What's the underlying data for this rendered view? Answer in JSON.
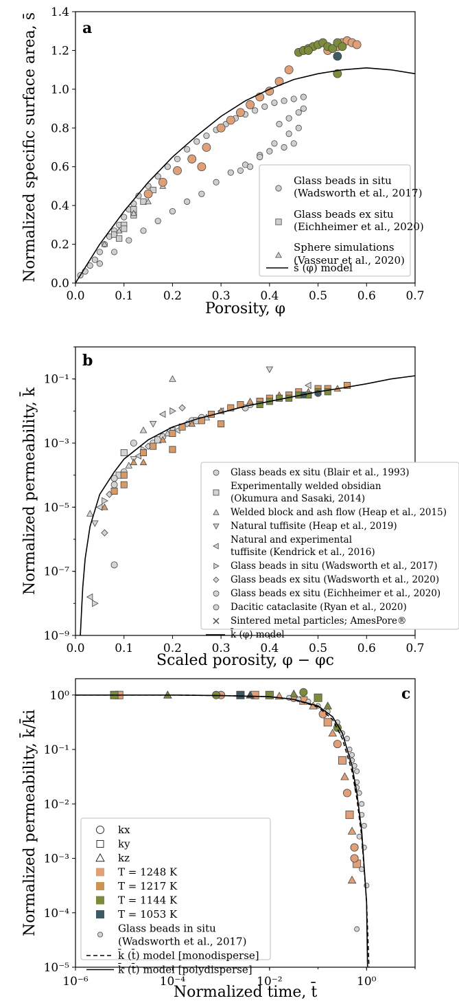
{
  "chart_data": [
    {
      "panel": "a",
      "type": "scatter",
      "xlabel": "Porosity, φ",
      "ylabel": "Normalized specific surface area, s̄",
      "xlim": [
        0,
        0.7
      ],
      "ylim": [
        0,
        1.4
      ],
      "xticks": [
        "0.0",
        "0.1",
        "0.2",
        "0.3",
        "0.4",
        "0.5",
        "0.6",
        "0.7"
      ],
      "yticks": [
        "0.0",
        "0.2",
        "0.4",
        "0.6",
        "0.8",
        "1.0",
        "1.2",
        "1.4"
      ],
      "legend_position": "lower-right",
      "legend": [
        {
          "label": "Glass beads in situ",
          "label2": "(Wadsworth et al., 2017)",
          "marker": "circle"
        },
        {
          "label": "Glass beads ex situ",
          "label2": "(Eichheimer et al., 2020)",
          "marker": "square"
        },
        {
          "label": "Sphere simulations",
          "label2": "(Vasseur et al., 2020)",
          "marker": "triangle"
        },
        {
          "label": "s̄ (φ) model",
          "label2": "",
          "marker": "line"
        }
      ],
      "series": [
        {
          "name": "Glass beads in situ (Wadsworth et al., 2017)",
          "marker": "circle",
          "color": "#cfcfcf",
          "x": [
            0.01,
            0.02,
            0.03,
            0.04,
            0.05,
            0.06,
            0.07,
            0.08,
            0.09,
            0.1,
            0.11,
            0.12,
            0.13,
            0.15,
            0.17,
            0.19,
            0.21,
            0.23,
            0.25,
            0.27,
            0.29,
            0.31,
            0.33,
            0.35,
            0.37,
            0.39,
            0.41,
            0.43,
            0.45,
            0.47,
            0.05,
            0.08,
            0.11,
            0.14,
            0.17,
            0.2,
            0.23,
            0.26,
            0.29,
            0.32,
            0.35,
            0.38,
            0.41,
            0.44,
            0.46,
            0.42,
            0.44,
            0.46,
            0.47,
            0.43,
            0.45,
            0.4,
            0.38,
            0.36,
            0.34
          ],
          "y": [
            0.04,
            0.06,
            0.09,
            0.12,
            0.16,
            0.2,
            0.24,
            0.27,
            0.3,
            0.34,
            0.38,
            0.41,
            0.45,
            0.5,
            0.55,
            0.6,
            0.64,
            0.69,
            0.73,
            0.76,
            0.79,
            0.82,
            0.85,
            0.87,
            0.89,
            0.91,
            0.93,
            0.94,
            0.95,
            0.96,
            0.1,
            0.16,
            0.22,
            0.27,
            0.32,
            0.37,
            0.42,
            0.46,
            0.52,
            0.57,
            0.61,
            0.66,
            0.72,
            0.77,
            0.8,
            0.82,
            0.85,
            0.88,
            0.9,
            0.7,
            0.72,
            0.68,
            0.65,
            0.6,
            0.58
          ]
        },
        {
          "name": "Glass beads ex situ (Eichheimer et al., 2020)",
          "marker": "square",
          "color": "#cfcfcf",
          "x": [
            0.08,
            0.1,
            0.12,
            0.14,
            0.16,
            0.12,
            0.1,
            0.09
          ],
          "y": [
            0.25,
            0.3,
            0.38,
            0.42,
            0.48,
            0.35,
            0.28,
            0.23
          ]
        },
        {
          "name": "Sphere simulations (Vasseur et al., 2020)",
          "marker": "triangle",
          "color": "#cfcfcf",
          "x": [
            0.06,
            0.09,
            0.12,
            0.15,
            0.18
          ],
          "y": [
            0.2,
            0.27,
            0.36,
            0.42,
            0.5
          ]
        },
        {
          "name": "Tan",
          "marker": "circle",
          "color": "#e0a077",
          "x": [
            0.15,
            0.18,
            0.21,
            0.24,
            0.27,
            0.3,
            0.32,
            0.34,
            0.36,
            0.38,
            0.4,
            0.42,
            0.44,
            0.52,
            0.54,
            0.55,
            0.56,
            0.57,
            0.58,
            0.26
          ],
          "y": [
            0.46,
            0.52,
            0.58,
            0.64,
            0.7,
            0.8,
            0.84,
            0.88,
            0.92,
            0.96,
            0.99,
            1.04,
            1.1,
            1.2,
            1.22,
            1.24,
            1.25,
            1.24,
            1.23,
            0.6
          ]
        },
        {
          "name": "Olive",
          "marker": "circle",
          "color": "#7d8c3c",
          "x": [
            0.46,
            0.47,
            0.48,
            0.49,
            0.5,
            0.51,
            0.52,
            0.53,
            0.54,
            0.55,
            0.54,
            0.48
          ],
          "y": [
            1.19,
            1.2,
            1.21,
            1.22,
            1.23,
            1.24,
            1.22,
            1.21,
            1.24,
            1.22,
            1.08,
            1.2
          ]
        },
        {
          "name": "Slate",
          "marker": "circle",
          "color": "#3e5a63",
          "x": [
            0.54
          ],
          "y": [
            1.17
          ]
        }
      ],
      "model": {
        "name": "s̄ (φ) model",
        "x": [
          0,
          0.05,
          0.1,
          0.15,
          0.2,
          0.25,
          0.3,
          0.35,
          0.4,
          0.45,
          0.5,
          0.55,
          0.6,
          0.65,
          0.7
        ],
        "y": [
          0,
          0.2,
          0.37,
          0.52,
          0.65,
          0.76,
          0.86,
          0.94,
          1.0,
          1.05,
          1.08,
          1.1,
          1.11,
          1.1,
          1.08
        ]
      }
    },
    {
      "panel": "b",
      "type": "scatter",
      "xlabel": "Scaled porosity, φ − φc",
      "ylabel": "Normalized permeability, k̄",
      "xlim": [
        0,
        0.7
      ],
      "ylog": true,
      "ylim": [
        1e-09,
        1
      ],
      "xticks": [
        "0.0",
        "0.1",
        "0.2",
        "0.3",
        "0.4",
        "0.5",
        "0.6",
        "0.7"
      ],
      "yticks": [
        "10⁻⁹",
        "10⁻⁷",
        "10⁻⁵",
        "10⁻³",
        "10⁻¹"
      ],
      "legend_position": "lower-right",
      "legend": [
        {
          "label": "Glass beads ex situ (Blair et al., 1993)",
          "marker": "circle"
        },
        {
          "label": "Experimentally welded obsidian",
          "label2": "(Okumura and Sasaki, 2014)",
          "marker": "square"
        },
        {
          "label": "Welded block and ash flow (Heap et al., 2015)",
          "marker": "triangle"
        },
        {
          "label": "Natural tuffisite (Heap et al., 2019)",
          "marker": "triangle-down"
        },
        {
          "label": "Natural and experimental",
          "label2": "tuffisite (Kendrick et al., 2016)",
          "marker": "triangle-left"
        },
        {
          "label": "Glass beads in situ (Wadsworth et al., 2017)",
          "marker": "triangle-right"
        },
        {
          "label": "Glass beads ex situ (Wadsworth et al., 2020)",
          "marker": "diamond"
        },
        {
          "label": "Glass beads ex situ (Eichheimer et al., 2020)",
          "marker": "octagon"
        },
        {
          "label": "Dacitic cataclasite (Ryan et al., 2020)",
          "marker": "pentagon"
        },
        {
          "label": "Sintered metal particles; AmesPore®",
          "marker": "cross"
        },
        {
          "label": "k̄ (φ) model",
          "marker": "line"
        }
      ],
      "series": [
        {
          "name": "grey",
          "marker": "circle",
          "color": "#d4d4d4",
          "x": [
            0.03,
            0.04,
            0.05,
            0.06,
            0.07,
            0.08,
            0.09,
            0.1,
            0.11,
            0.12,
            0.13,
            0.14,
            0.15,
            0.16,
            0.17,
            0.18,
            0.19,
            0.2,
            0.21,
            0.22,
            0.23,
            0.24,
            0.25,
            0.26,
            0.27,
            0.28,
            0.3,
            0.32,
            0.34,
            0.36,
            0.38,
            0.4,
            0.42,
            0.44,
            0.03,
            0.04,
            0.06,
            0.08,
            0.1,
            0.12,
            0.14,
            0.16,
            0.18,
            0.2,
            0.22,
            0.35,
            0.38,
            0.08,
            0.2,
            0.4,
            0.48
          ],
          "y": [
            -5.2,
            -5.5,
            -5.0,
            -4.8,
            -4.6,
            -4.3,
            -4.0,
            -3.9,
            -3.7,
            -3.5,
            -3.4,
            -3.2,
            -3.1,
            -3.0,
            -2.9,
            -2.8,
            -2.7,
            -2.6,
            -2.6,
            -2.5,
            -2.4,
            -2.3,
            -2.3,
            -2.2,
            -2.2,
            -2.1,
            -2.0,
            -1.9,
            -1.8,
            -1.8,
            -1.7,
            -1.6,
            -1.6,
            -1.5,
            -7.8,
            -8.0,
            -5.8,
            -4.1,
            -3.3,
            -3.0,
            -2.6,
            -2.4,
            -2.1,
            -2.0,
            -1.9,
            -1.9,
            -1.7,
            -6.8,
            -1.0,
            -0.7,
            -1.2
          ]
        },
        {
          "name": "tan",
          "marker": "square",
          "color": "#d79a67",
          "x": [
            0.06,
            0.08,
            0.1,
            0.12,
            0.14,
            0.16,
            0.18,
            0.2,
            0.22,
            0.24,
            0.26,
            0.28,
            0.3,
            0.32,
            0.34,
            0.36,
            0.38,
            0.4,
            0.42,
            0.44,
            0.46,
            0.48,
            0.5,
            0.52,
            0.54,
            0.56,
            0.1,
            0.14,
            0.2,
            0.3
          ],
          "y": [
            -5.0,
            -4.5,
            -4.0,
            -3.6,
            -3.3,
            -3.1,
            -2.9,
            -2.7,
            -2.5,
            -2.4,
            -2.3,
            -2.1,
            -2.0,
            -1.9,
            -1.8,
            -1.7,
            -1.7,
            -1.6,
            -1.5,
            -1.5,
            -1.4,
            -1.4,
            -1.3,
            -1.3,
            -1.3,
            -1.2,
            -4.3,
            -3.6,
            -3.2,
            -2.4
          ]
        },
        {
          "name": "olive",
          "marker": "square",
          "color": "#7d8c3c",
          "x": [
            0.38,
            0.4,
            0.42,
            0.44,
            0.46,
            0.48,
            0.5,
            0.52
          ],
          "y": [
            -1.8,
            -1.7,
            -1.6,
            -1.6,
            -1.5,
            -1.5,
            -1.4,
            -1.4
          ]
        },
        {
          "name": "slate",
          "marker": "circle",
          "color": "#3e5a63",
          "x": [
            0.47,
            0.5
          ],
          "y": [
            -1.5,
            -1.45
          ]
        }
      ],
      "model": {
        "name": "k̄ (φ) model",
        "x": [
          0.01,
          0.015,
          0.02,
          0.03,
          0.05,
          0.08,
          0.1,
          0.15,
          0.2,
          0.25,
          0.3,
          0.35,
          0.4,
          0.45,
          0.5,
          0.55,
          0.6,
          0.65,
          0.7
        ],
        "y": [
          -9,
          -7.5,
          -6.6,
          -5.6,
          -4.6,
          -3.9,
          -3.5,
          -2.9,
          -2.5,
          -2.25,
          -2.05,
          -1.85,
          -1.7,
          -1.55,
          -1.4,
          -1.28,
          -1.15,
          -1.0,
          -0.9
        ]
      }
    },
    {
      "panel": "c",
      "type": "scatter",
      "xlabel": "Normalized time, t̄",
      "ylabel": "Normalized permeability, k̄/k̄i",
      "xlog": true,
      "ylog": true,
      "xlim": [
        1e-06,
        10
      ],
      "ylim": [
        1e-05,
        2
      ],
      "xticks": [
        "10⁻⁶",
        "10⁻⁴",
        "10⁻²",
        "10⁰"
      ],
      "yticks": [
        "10⁻⁵",
        "10⁻⁴",
        "10⁻³",
        "10⁻²",
        "10⁻¹",
        "10⁰"
      ],
      "legend_position": "lower-left",
      "legend": [
        {
          "label": "kx",
          "marker": "circle-open"
        },
        {
          "label": "ky",
          "marker": "square-open"
        },
        {
          "label": "kz",
          "marker": "triangle-open"
        },
        {
          "label": "T = 1248 K",
          "marker": "square-fill",
          "color": "#e0a077"
        },
        {
          "label": "T = 1217 K",
          "marker": "square-fill",
          "color": "#c99550"
        },
        {
          "label": "T = 1144 K",
          "marker": "square-fill",
          "color": "#7d8c3c"
        },
        {
          "label": "T = 1053 K",
          "marker": "square-fill",
          "color": "#3e5a63"
        },
        {
          "label": "Glass beads in situ",
          "label2": "(Wadsworth et al., 2017)",
          "marker": "circle-small"
        },
        {
          "label": "k̄ (t̄) model [monodisperse]",
          "marker": "dashed"
        },
        {
          "label": "k̄ (t̄) model [polydisperse]",
          "marker": "line"
        }
      ],
      "series": [
        {
          "name": "tan",
          "marker": "square",
          "color": "#e0a077",
          "x": [
            -5.1,
            -4.1,
            -3.0,
            -2.3,
            -1.8,
            -1.5,
            -1.3,
            -1.1,
            -0.9,
            -0.8,
            -0.7,
            -0.6,
            -0.5,
            -0.45,
            -0.4,
            -0.35,
            -0.3,
            -0.25,
            -0.2,
            -0.3,
            -0.25
          ],
          "y": [
            0,
            0,
            0,
            0,
            -0.02,
            -0.05,
            -0.1,
            -0.2,
            -0.35,
            -0.5,
            -0.7,
            -0.9,
            -1.2,
            -1.5,
            -1.8,
            -2.2,
            -2.5,
            -2.8,
            -3.1,
            -3.4,
            -3.0
          ]
        },
        {
          "name": "olive",
          "marker": "square",
          "color": "#7d8c3c",
          "x": [
            -5.2,
            -4.1,
            -3.1,
            -2.0,
            -1.5,
            -1.3,
            -1.0,
            -0.8,
            -0.6
          ],
          "y": [
            0,
            0,
            0,
            0,
            0.02,
            0.05,
            -0.05,
            -0.2,
            -0.6
          ]
        },
        {
          "name": "slate",
          "marker": "square",
          "color": "#3e5a63",
          "x": [
            -2.6,
            -2.4
          ],
          "y": [
            0,
            0
          ]
        },
        {
          "name": "grey",
          "marker": "circle",
          "color": "#d4d4d4",
          "x": [
            -1.6,
            -1.4,
            -1.2,
            -1.0,
            -0.8,
            -0.6,
            -0.4,
            -0.3,
            -0.2,
            -0.15,
            -0.1,
            -0.05,
            0,
            -0.5,
            -0.35,
            -0.25,
            -0.2,
            -0.1,
            -0.05,
            -0.3,
            -0.2,
            -0.15,
            -0.1,
            -0.2
          ],
          "y": [
            -0.05,
            -0.08,
            -0.12,
            -0.2,
            -0.3,
            -0.5,
            -0.8,
            -1.1,
            -1.4,
            -1.8,
            -2.2,
            -2.8,
            -3.5,
            -0.7,
            -1.0,
            -1.3,
            -1.6,
            -2.0,
            -2.4,
            -1.2,
            -1.7,
            -2.6,
            -3.2,
            -4.3
          ]
        }
      ],
      "model_mono": {
        "name": "k̄ (t̄) model [monodisperse]",
        "x": [
          -6,
          -4,
          -3,
          -2,
          -1.5,
          -1,
          -0.7,
          -0.5,
          -0.3,
          -0.2,
          -0.1,
          0,
          0.05
        ],
        "y": [
          0,
          0,
          -0.01,
          -0.03,
          -0.08,
          -0.22,
          -0.45,
          -0.8,
          -1.4,
          -1.9,
          -2.6,
          -3.8,
          -5
        ]
      },
      "model_poly": {
        "name": "k̄ (t̄) model [polydisperse]",
        "x": [
          -6,
          -4,
          -3,
          -2,
          -1.5,
          -1,
          -0.7,
          -0.5,
          -0.3,
          -0.2,
          -0.1,
          0,
          0.02
        ],
        "y": [
          0,
          0,
          -0.01,
          -0.03,
          -0.08,
          -0.2,
          -0.4,
          -0.7,
          -1.3,
          -1.8,
          -2.5,
          -3.8,
          -5
        ]
      }
    }
  ]
}
